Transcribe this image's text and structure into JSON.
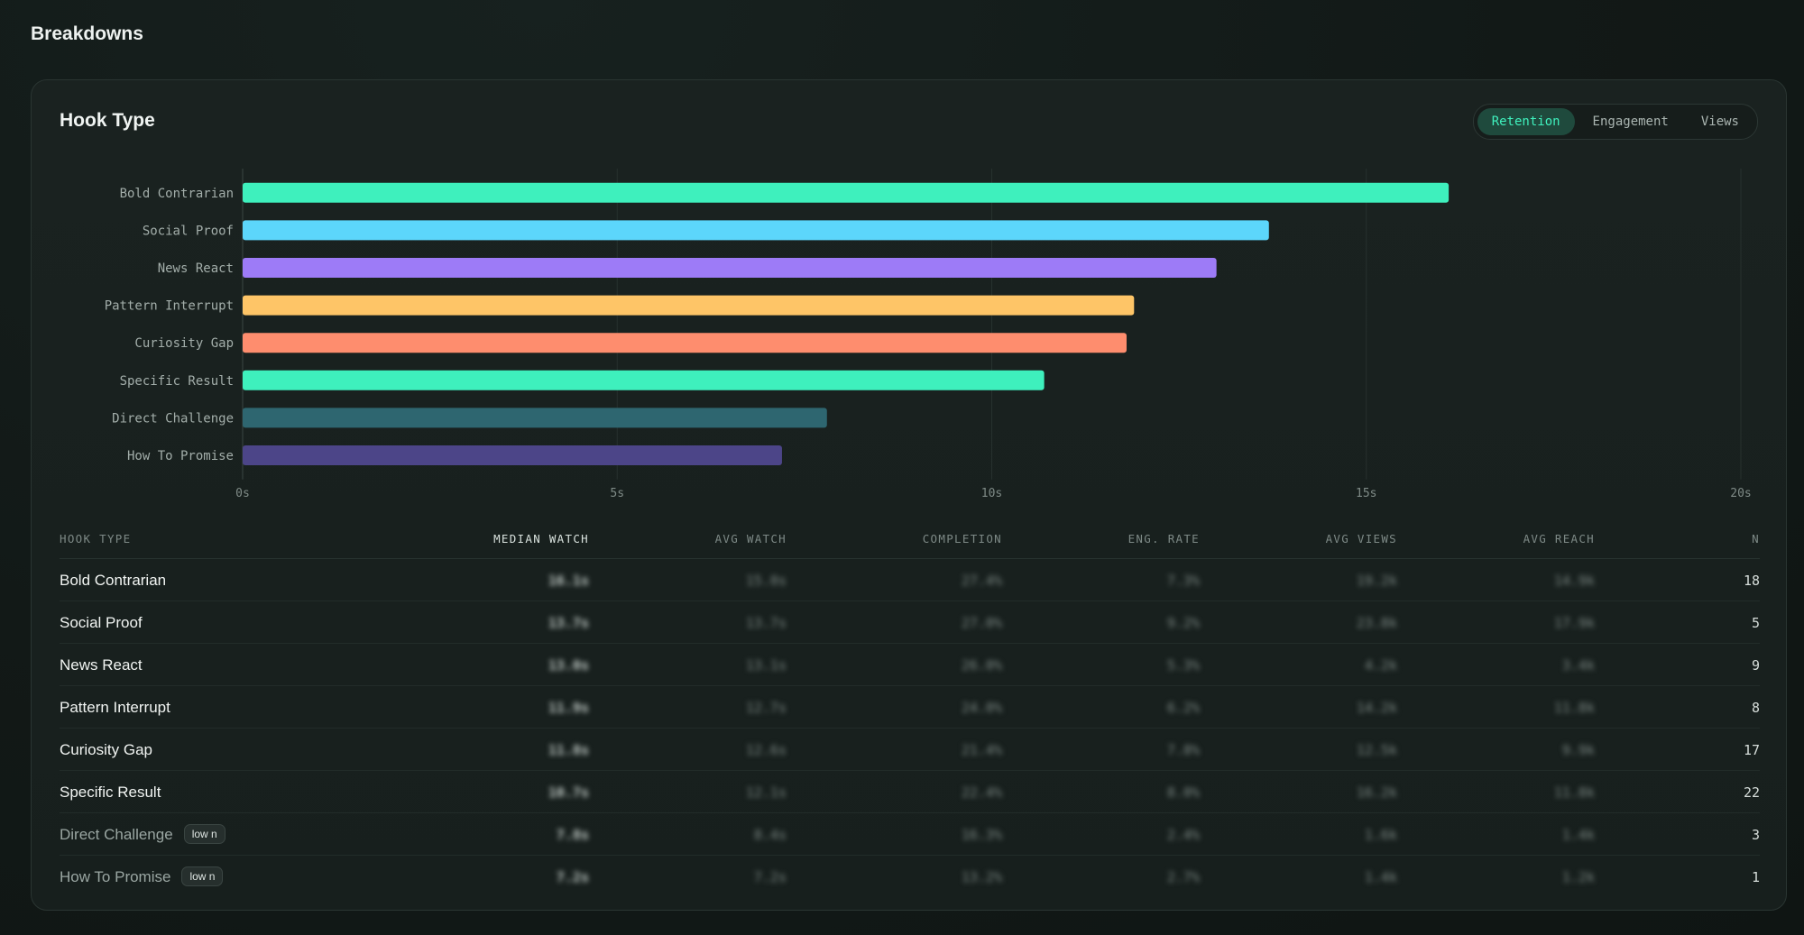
{
  "page": {
    "title": "Breakdowns"
  },
  "card": {
    "title": "Hook Type",
    "metric_tabs": [
      {
        "label": "Retention",
        "active": true
      },
      {
        "label": "Engagement",
        "active": false
      },
      {
        "label": "Views",
        "active": false
      }
    ]
  },
  "chart_data": {
    "type": "bar",
    "orientation": "horizontal",
    "categories": [
      "Bold Contrarian",
      "Social Proof",
      "News React",
      "Pattern Interrupt",
      "Curiosity Gap",
      "Specific Result",
      "Direct Challenge",
      "How To Promise"
    ],
    "values": [
      16.1,
      13.7,
      13.0,
      11.9,
      11.8,
      10.7,
      7.8,
      7.2
    ],
    "colors": [
      "#3ef0bd",
      "#5cd6fb",
      "#9d7bf7",
      "#fec567",
      "#fe8d6e",
      "#3ef0bd",
      "#2e6670",
      "#4c4588"
    ],
    "xlim": [
      0,
      20
    ],
    "xticks": [
      "0s",
      "5s",
      "10s",
      "15s",
      "20s"
    ],
    "xtick_values": [
      0,
      5,
      10,
      15,
      20
    ],
    "grid": true
  },
  "table": {
    "columns": [
      "HOOK TYPE",
      "MEDIAN WATCH",
      "AVG WATCH",
      "COMPLETION",
      "ENG. RATE",
      "AVG VIEWS",
      "AVG REACH",
      "N"
    ],
    "rows": [
      {
        "name": "Bold Contrarian",
        "badge": "",
        "median": "16.1s",
        "avg": "15.0s",
        "completion": "27.4%",
        "eng": "7.3%",
        "views": "19.2k",
        "reach": "14.9k",
        "n": "18"
      },
      {
        "name": "Social Proof",
        "badge": "",
        "median": "13.7s",
        "avg": "13.7s",
        "completion": "27.0%",
        "eng": "9.2%",
        "views": "23.8k",
        "reach": "17.9k",
        "n": "5"
      },
      {
        "name": "News React",
        "badge": "",
        "median": "13.0s",
        "avg": "13.1s",
        "completion": "26.0%",
        "eng": "5.3%",
        "views": "4.2k",
        "reach": "3.4k",
        "n": "9"
      },
      {
        "name": "Pattern Interrupt",
        "badge": "",
        "median": "11.9s",
        "avg": "12.7s",
        "completion": "24.0%",
        "eng": "6.2%",
        "views": "14.2k",
        "reach": "11.8k",
        "n": "8"
      },
      {
        "name": "Curiosity Gap",
        "badge": "",
        "median": "11.8s",
        "avg": "12.6s",
        "completion": "21.4%",
        "eng": "7.8%",
        "views": "12.5k",
        "reach": "9.9k",
        "n": "17"
      },
      {
        "name": "Specific Result",
        "badge": "",
        "median": "10.7s",
        "avg": "12.1s",
        "completion": "22.4%",
        "eng": "8.0%",
        "views": "16.2k",
        "reach": "11.8k",
        "n": "22"
      },
      {
        "name": "Direct Challenge",
        "badge": "low n",
        "median": "7.8s",
        "avg": "8.4s",
        "completion": "16.3%",
        "eng": "2.4%",
        "views": "1.6k",
        "reach": "1.4k",
        "n": "3"
      },
      {
        "name": "How To Promise",
        "badge": "low n",
        "median": "7.2s",
        "avg": "7.2s",
        "completion": "13.2%",
        "eng": "2.7%",
        "views": "1.4k",
        "reach": "1.2k",
        "n": "1"
      }
    ]
  }
}
